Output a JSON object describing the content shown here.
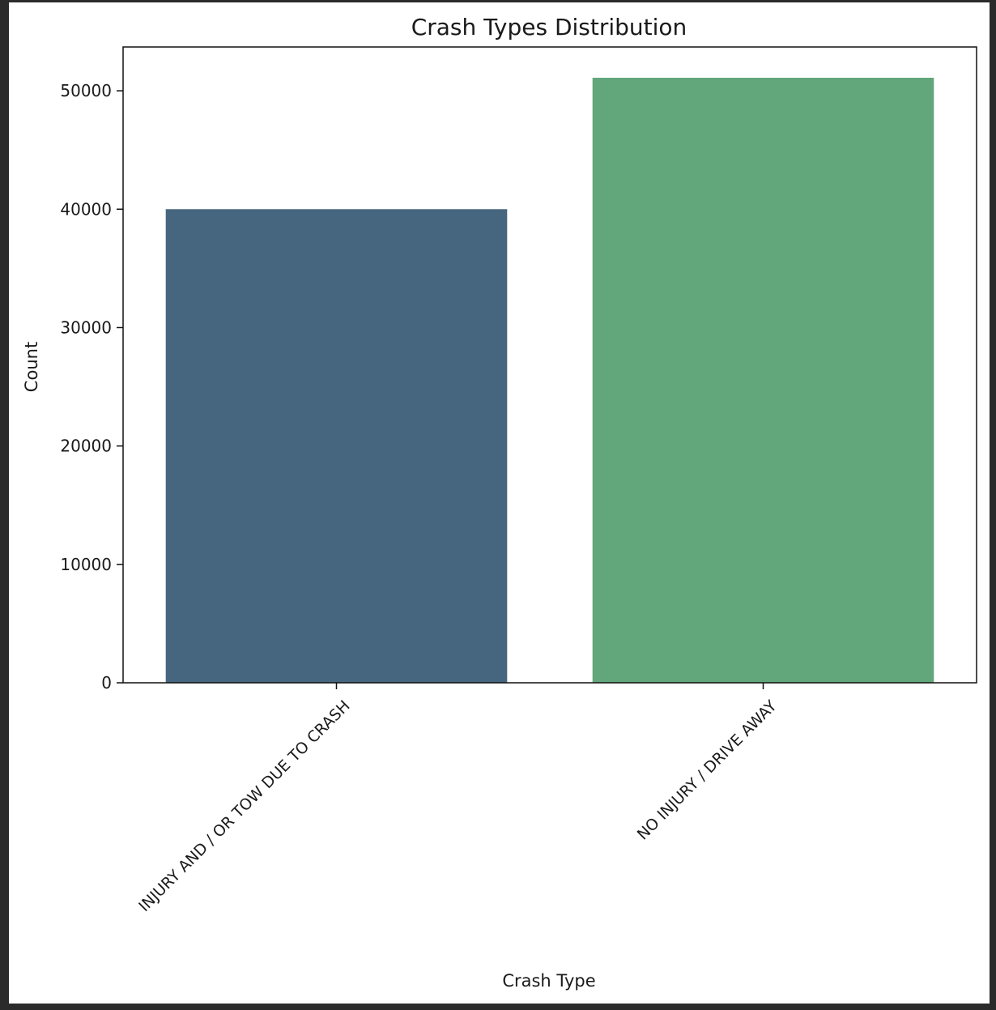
{
  "chart_data": {
    "type": "bar",
    "title": "Crash Types Distribution",
    "xlabel": "Crash Type",
    "ylabel": "Count",
    "categories": [
      "INJURY AND / OR TOW DUE TO CRASH",
      "NO INJURY / DRIVE AWAY"
    ],
    "values": [
      40000,
      51100
    ],
    "colors": [
      "#46667f",
      "#62a67b"
    ],
    "ylim": [
      0,
      53700
    ],
    "yticks": [
      0,
      10000,
      20000,
      30000,
      40000,
      50000
    ],
    "grid": false,
    "legend": "none"
  }
}
